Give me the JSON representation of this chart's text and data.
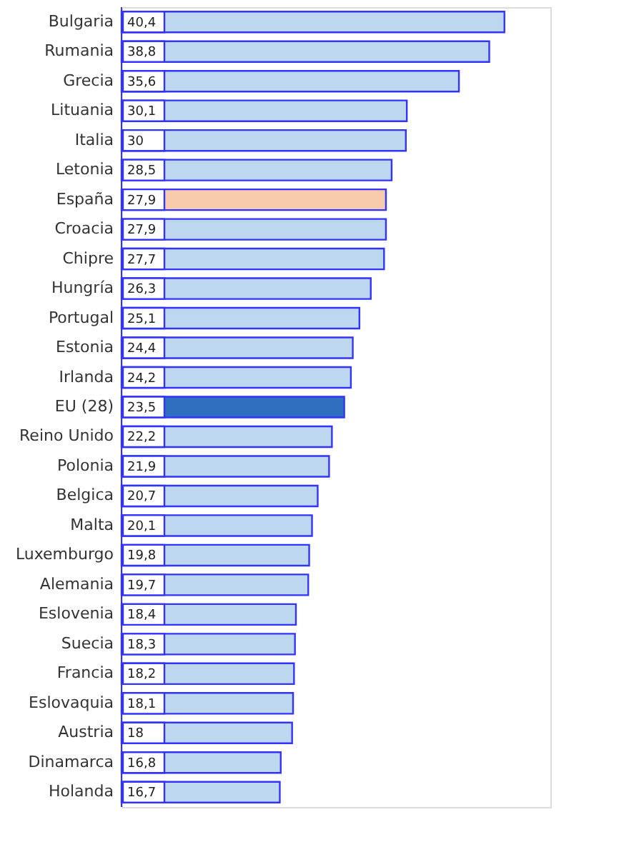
{
  "chart_data": {
    "type": "bar",
    "orientation": "horizontal",
    "categories": [
      "Bulgaria",
      "Rumania",
      "Grecia",
      "Lituania",
      "Italia",
      "Letonia",
      "España",
      "Croacia",
      "Chipre",
      "Hungría",
      "Portugal",
      "Estonia",
      "Irlanda",
      "EU (28)",
      "Reino Unido",
      "Polonia",
      "Belgica",
      "Malta",
      "Luxemburgo",
      "Alemania",
      "Eslovenia",
      "Suecia",
      "Francia",
      "Eslovaquia",
      "Austria",
      "Dinamarca",
      "Holanda"
    ],
    "values": [
      40.4,
      38.8,
      35.6,
      30.1,
      30,
      28.5,
      27.9,
      27.9,
      27.7,
      26.3,
      25.1,
      24.4,
      24.2,
      23.5,
      22.2,
      21.9,
      20.7,
      20.1,
      19.8,
      19.7,
      18.4,
      18.3,
      18.2,
      18.1,
      18,
      16.8,
      16.7
    ],
    "value_labels": [
      "40,4",
      "38,8",
      "35,6",
      "30,1",
      "30",
      "28,5",
      "27,9",
      "27,9",
      "27,7",
      "26,3",
      "25,1",
      "24,4",
      "24,2",
      "23,5",
      "22,2",
      "21,9",
      "20,7",
      "20,1",
      "19,8",
      "19,7",
      "18,4",
      "18,3",
      "18,2",
      "18,1",
      "18",
      "16,8",
      "16,7"
    ],
    "colors": [
      "#bdd7ee",
      "#bdd7ee",
      "#bdd7ee",
      "#bdd7ee",
      "#bdd7ee",
      "#bdd7ee",
      "#f8cbad",
      "#bdd7ee",
      "#bdd7ee",
      "#bdd7ee",
      "#bdd7ee",
      "#bdd7ee",
      "#bdd7ee",
      "#2e6fbf",
      "#bdd7ee",
      "#bdd7ee",
      "#bdd7ee",
      "#bdd7ee",
      "#bdd7ee",
      "#bdd7ee",
      "#bdd7ee",
      "#bdd7ee",
      "#bdd7ee",
      "#bdd7ee",
      "#bdd7ee",
      "#bdd7ee",
      "#bdd7ee"
    ],
    "grid": false
  }
}
